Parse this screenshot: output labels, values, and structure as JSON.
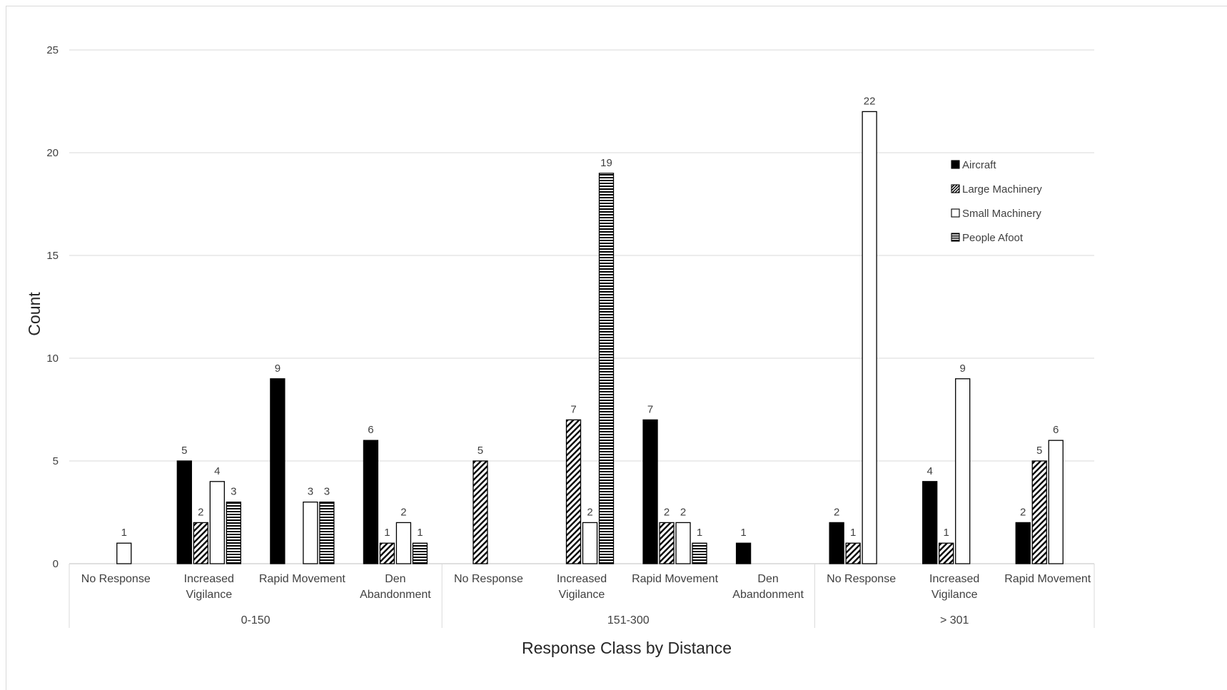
{
  "chart_data": {
    "type": "bar",
    "title": "",
    "xlabel": "Response Class by Distance",
    "ylabel": "Count",
    "ylim": [
      0,
      25
    ],
    "yticks": [
      "0",
      "5",
      "10",
      "15",
      "20",
      "25"
    ],
    "grid": true,
    "legend_position": "top-right",
    "groups": [
      {
        "name": "0-150",
        "categories": [
          "No Response",
          "Increased|Vigilance",
          "Rapid Movement",
          "Den|Abandonment"
        ]
      },
      {
        "name": "151-300",
        "categories": [
          "No Response",
          "Increased|Vigilance",
          "Rapid Movement",
          "Den|Abandonment"
        ]
      },
      {
        "name": "> 301",
        "categories": [
          "No Response",
          "Increased|Vigilance",
          "Rapid Movement"
        ]
      }
    ],
    "series": [
      {
        "name": "Aircraft",
        "pattern": "solid",
        "values": [
          null,
          5,
          9,
          6,
          null,
          null,
          7,
          1,
          2,
          4,
          2
        ]
      },
      {
        "name": "Large Machinery",
        "pattern": "diagonal",
        "values": [
          null,
          2,
          null,
          1,
          5,
          7,
          2,
          null,
          1,
          1,
          5
        ]
      },
      {
        "name": "Small Machinery",
        "pattern": "open",
        "values": [
          1,
          4,
          3,
          2,
          null,
          2,
          2,
          null,
          22,
          9,
          6
        ]
      },
      {
        "name": "People Afoot",
        "pattern": "horizontal",
        "values": [
          null,
          3,
          3,
          1,
          null,
          19,
          1,
          null,
          null,
          null,
          null
        ]
      }
    ],
    "colors": {
      "bar_fill": "#000000",
      "open_fill": "#ffffff",
      "gridline": "#d9d9d9",
      "text": "#404040"
    }
  }
}
